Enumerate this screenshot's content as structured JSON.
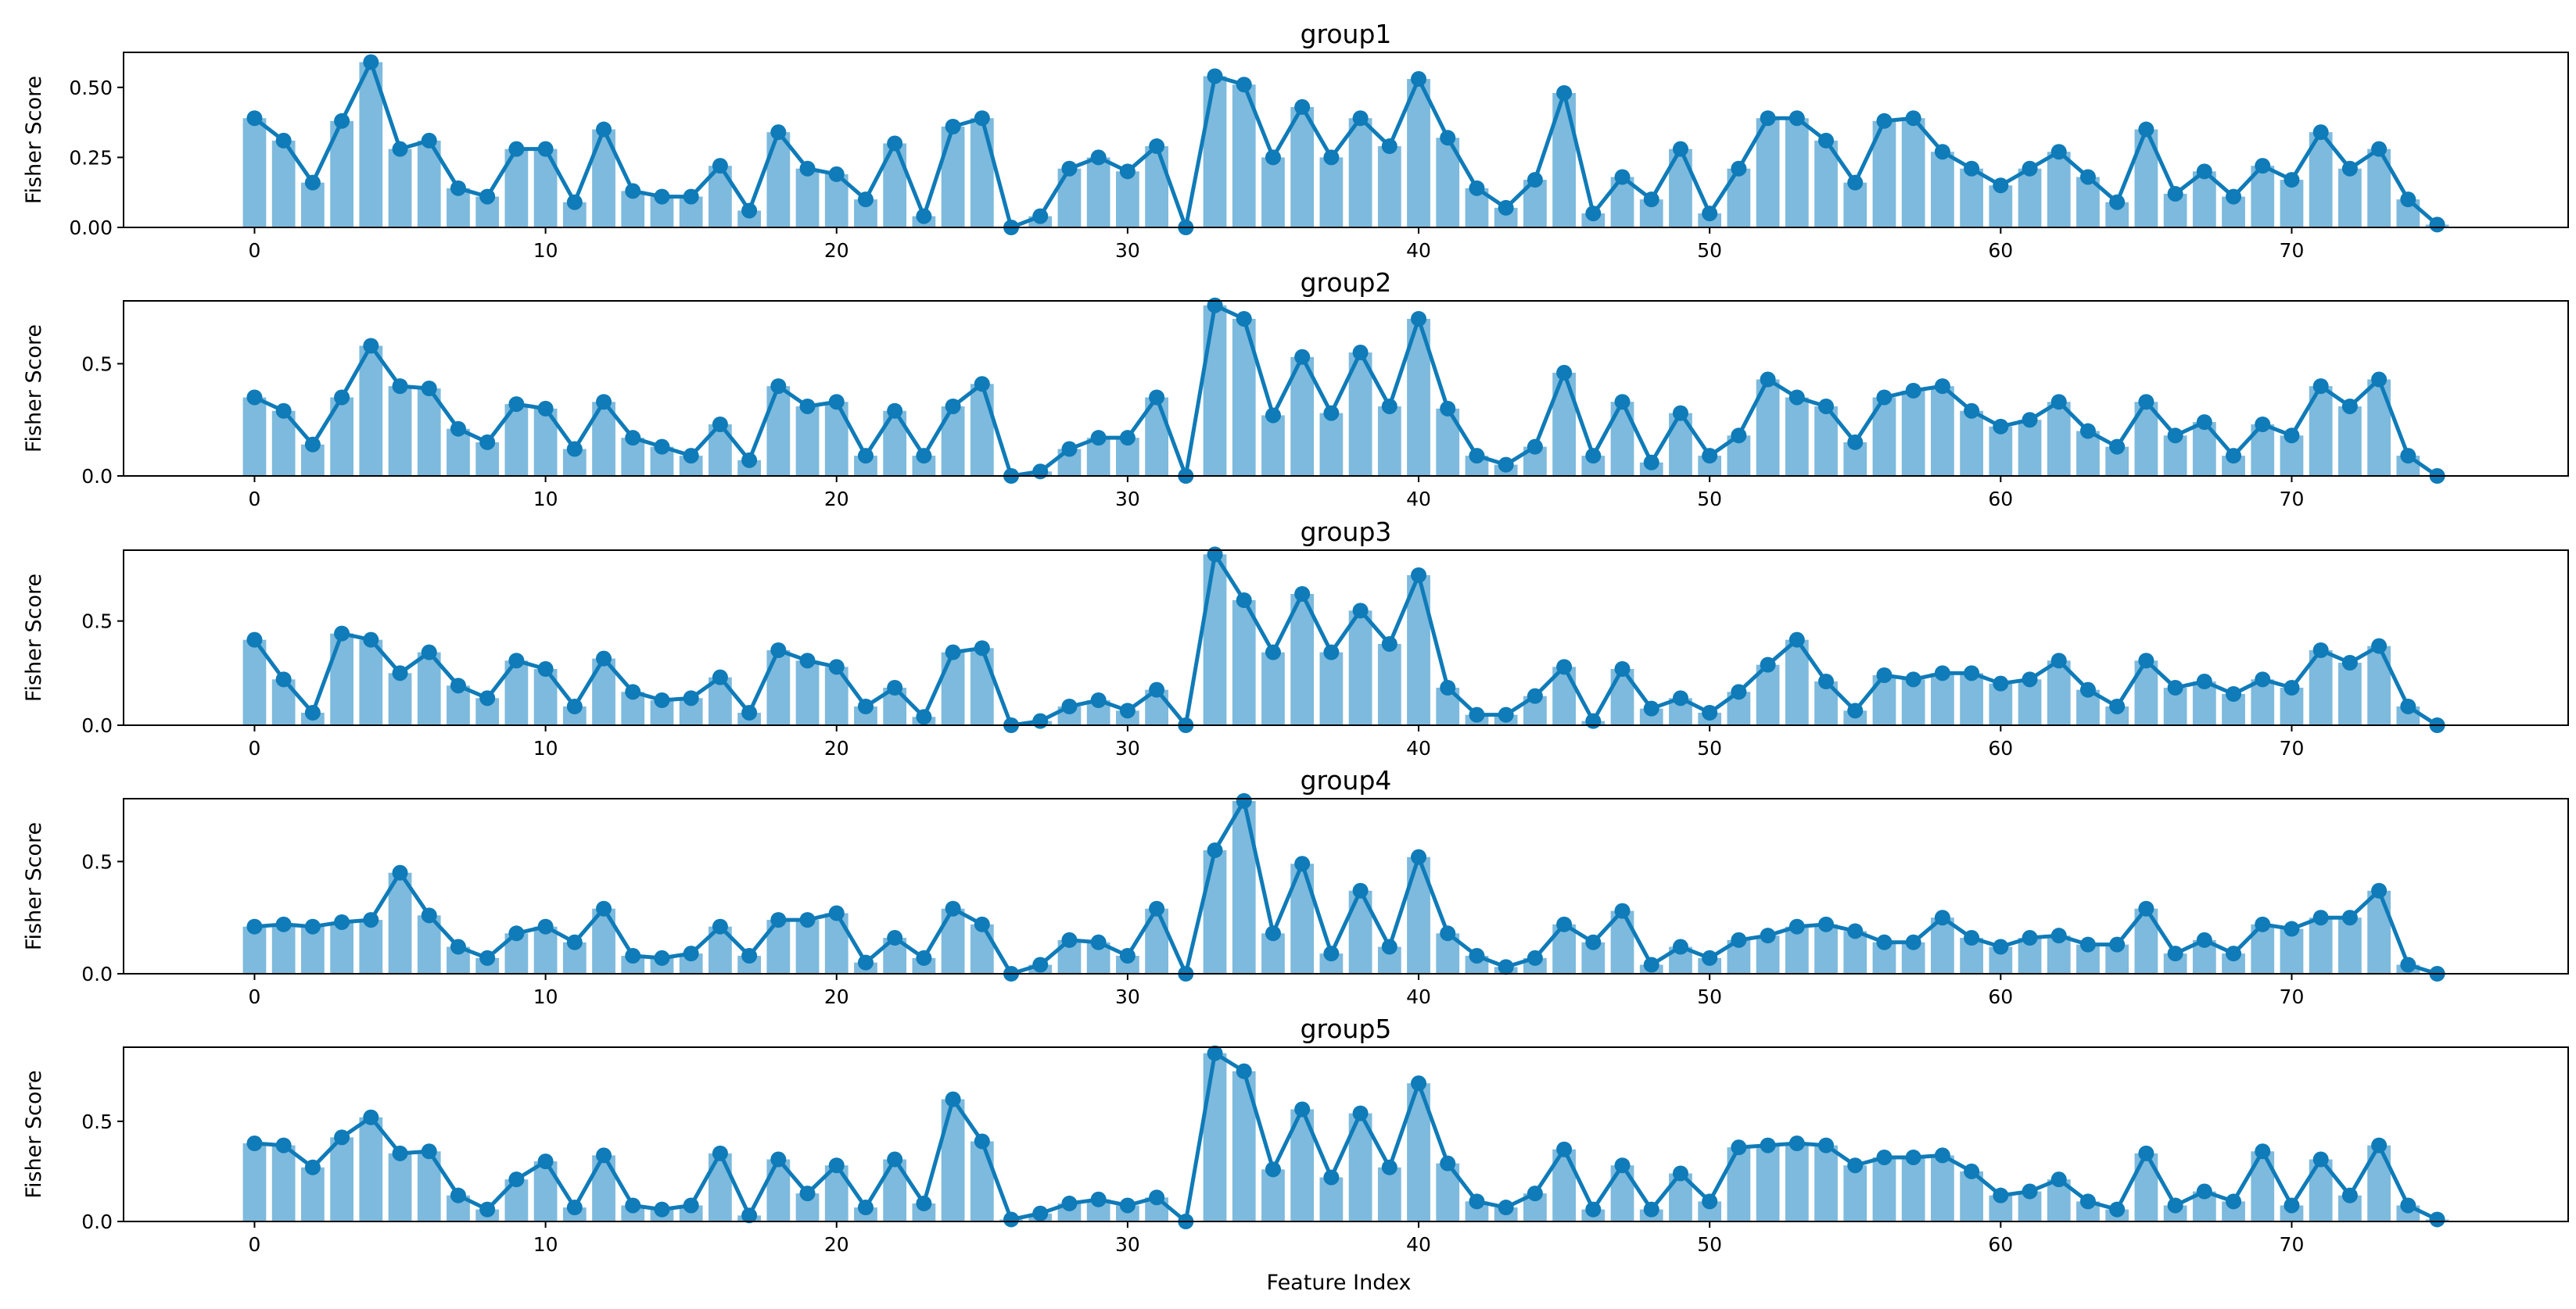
{
  "figure": {
    "xlabel": "Feature Index"
  },
  "colors": {
    "bar": "#7dbadd",
    "line": "#0f7bb8",
    "axes": "#000000",
    "background": "#ffffff"
  },
  "chart_data": [
    {
      "type": "bar",
      "title": "group1",
      "xlabel": "",
      "ylabel": "Fisher Score",
      "xlim": [
        -4.5,
        79.5
      ],
      "ylim": [
        0,
        0.625
      ],
      "xticks": [
        0,
        10,
        20,
        30,
        40,
        50,
        60,
        70
      ],
      "yticks": [
        0.0,
        0.25,
        0.5
      ],
      "ytick_labels": [
        "0.00",
        "0.25",
        "0.50"
      ],
      "grid": false,
      "overlay": "line-with-markers",
      "values": [
        0.39,
        0.31,
        0.16,
        0.38,
        0.59,
        0.28,
        0.31,
        0.14,
        0.11,
        0.28,
        0.28,
        0.09,
        0.35,
        0.13,
        0.11,
        0.11,
        0.22,
        0.06,
        0.34,
        0.21,
        0.19,
        0.1,
        0.3,
        0.04,
        0.36,
        0.39,
        0.0,
        0.04,
        0.21,
        0.25,
        0.2,
        0.29,
        0.0,
        0.54,
        0.51,
        0.25,
        0.43,
        0.25,
        0.39,
        0.29,
        0.53,
        0.32,
        0.14,
        0.07,
        0.17,
        0.48,
        0.05,
        0.18,
        0.1,
        0.28,
        0.05,
        0.21,
        0.39,
        0.39,
        0.31,
        0.16,
        0.38,
        0.39,
        0.27,
        0.21,
        0.15,
        0.21,
        0.27,
        0.18,
        0.09,
        0.35,
        0.12,
        0.2,
        0.11,
        0.22,
        0.17,
        0.34,
        0.21,
        0.28,
        0.1,
        0.01
      ]
    },
    {
      "type": "bar",
      "title": "group2",
      "xlabel": "",
      "ylabel": "Fisher Score",
      "xlim": [
        -4.5,
        79.5
      ],
      "ylim": [
        0,
        0.78
      ],
      "xticks": [
        0,
        10,
        20,
        30,
        40,
        50,
        60,
        70
      ],
      "yticks": [
        0.0,
        0.5
      ],
      "ytick_labels": [
        "0.0",
        "0.5"
      ],
      "grid": false,
      "overlay": "line-with-markers",
      "values": [
        0.35,
        0.29,
        0.14,
        0.35,
        0.58,
        0.4,
        0.39,
        0.21,
        0.15,
        0.32,
        0.3,
        0.12,
        0.33,
        0.17,
        0.13,
        0.09,
        0.23,
        0.07,
        0.4,
        0.31,
        0.33,
        0.09,
        0.29,
        0.09,
        0.31,
        0.41,
        0.0,
        0.02,
        0.12,
        0.17,
        0.17,
        0.35,
        0.0,
        0.76,
        0.7,
        0.27,
        0.53,
        0.28,
        0.55,
        0.31,
        0.7,
        0.3,
        0.09,
        0.05,
        0.13,
        0.46,
        0.09,
        0.33,
        0.06,
        0.28,
        0.09,
        0.18,
        0.43,
        0.35,
        0.31,
        0.15,
        0.35,
        0.38,
        0.4,
        0.29,
        0.22,
        0.25,
        0.33,
        0.2,
        0.13,
        0.33,
        0.18,
        0.24,
        0.09,
        0.23,
        0.18,
        0.4,
        0.31,
        0.43,
        0.09,
        0.0
      ]
    },
    {
      "type": "bar",
      "title": "group3",
      "xlabel": "",
      "ylabel": "Fisher Score",
      "xlim": [
        -4.5,
        79.5
      ],
      "ylim": [
        0,
        0.84
      ],
      "xticks": [
        0,
        10,
        20,
        30,
        40,
        50,
        60,
        70
      ],
      "yticks": [
        0.0,
        0.5
      ],
      "ytick_labels": [
        "0.0",
        "0.5"
      ],
      "grid": false,
      "overlay": "line-with-markers",
      "values": [
        0.41,
        0.22,
        0.06,
        0.44,
        0.41,
        0.25,
        0.35,
        0.19,
        0.13,
        0.31,
        0.27,
        0.09,
        0.32,
        0.16,
        0.12,
        0.13,
        0.23,
        0.06,
        0.36,
        0.31,
        0.28,
        0.09,
        0.18,
        0.04,
        0.35,
        0.37,
        0.0,
        0.02,
        0.09,
        0.12,
        0.07,
        0.17,
        0.0,
        0.82,
        0.6,
        0.35,
        0.63,
        0.35,
        0.55,
        0.39,
        0.72,
        0.18,
        0.05,
        0.05,
        0.14,
        0.28,
        0.02,
        0.27,
        0.08,
        0.13,
        0.06,
        0.16,
        0.29,
        0.41,
        0.21,
        0.07,
        0.24,
        0.22,
        0.25,
        0.25,
        0.2,
        0.22,
        0.31,
        0.17,
        0.09,
        0.31,
        0.18,
        0.21,
        0.15,
        0.22,
        0.18,
        0.36,
        0.3,
        0.38,
        0.09,
        0.0
      ]
    },
    {
      "type": "bar",
      "title": "group4",
      "xlabel": "",
      "ylabel": "Fisher Score",
      "xlim": [
        -4.5,
        79.5
      ],
      "ylim": [
        0,
        0.78
      ],
      "xticks": [
        0,
        10,
        20,
        30,
        40,
        50,
        60,
        70
      ],
      "yticks": [
        0.0,
        0.5
      ],
      "ytick_labels": [
        "0.0",
        "0.5"
      ],
      "grid": false,
      "overlay": "line-with-markers",
      "values": [
        0.21,
        0.22,
        0.21,
        0.23,
        0.24,
        0.45,
        0.26,
        0.12,
        0.07,
        0.18,
        0.21,
        0.14,
        0.29,
        0.08,
        0.07,
        0.09,
        0.21,
        0.08,
        0.24,
        0.24,
        0.27,
        0.05,
        0.16,
        0.07,
        0.29,
        0.22,
        0.0,
        0.04,
        0.15,
        0.14,
        0.08,
        0.29,
        0.0,
        0.55,
        0.77,
        0.18,
        0.49,
        0.09,
        0.37,
        0.12,
        0.52,
        0.18,
        0.08,
        0.03,
        0.07,
        0.22,
        0.14,
        0.28,
        0.04,
        0.12,
        0.07,
        0.15,
        0.17,
        0.21,
        0.22,
        0.19,
        0.14,
        0.14,
        0.25,
        0.16,
        0.12,
        0.16,
        0.17,
        0.13,
        0.13,
        0.29,
        0.09,
        0.15,
        0.09,
        0.22,
        0.2,
        0.25,
        0.25,
        0.37,
        0.04,
        0.0
      ]
    },
    {
      "type": "bar",
      "title": "group5",
      "xlabel": "Feature Index",
      "ylabel": "Fisher Score",
      "xlim": [
        -4.5,
        79.5
      ],
      "ylim": [
        0,
        0.87
      ],
      "xticks": [
        0,
        10,
        20,
        30,
        40,
        50,
        60,
        70
      ],
      "yticks": [
        0.0,
        0.5
      ],
      "ytick_labels": [
        "0.0",
        "0.5"
      ],
      "grid": false,
      "overlay": "line-with-markers",
      "values": [
        0.39,
        0.38,
        0.27,
        0.42,
        0.52,
        0.34,
        0.35,
        0.13,
        0.06,
        0.21,
        0.3,
        0.07,
        0.33,
        0.08,
        0.06,
        0.08,
        0.34,
        0.03,
        0.31,
        0.14,
        0.28,
        0.07,
        0.31,
        0.09,
        0.61,
        0.4,
        0.01,
        0.04,
        0.09,
        0.11,
        0.08,
        0.12,
        0.0,
        0.84,
        0.75,
        0.26,
        0.56,
        0.22,
        0.54,
        0.27,
        0.69,
        0.29,
        0.1,
        0.07,
        0.14,
        0.36,
        0.06,
        0.28,
        0.06,
        0.24,
        0.1,
        0.37,
        0.38,
        0.39,
        0.38,
        0.28,
        0.32,
        0.32,
        0.33,
        0.25,
        0.13,
        0.15,
        0.21,
        0.1,
        0.06,
        0.34,
        0.08,
        0.15,
        0.1,
        0.35,
        0.08,
        0.31,
        0.13,
        0.38,
        0.08,
        0.01
      ]
    }
  ]
}
